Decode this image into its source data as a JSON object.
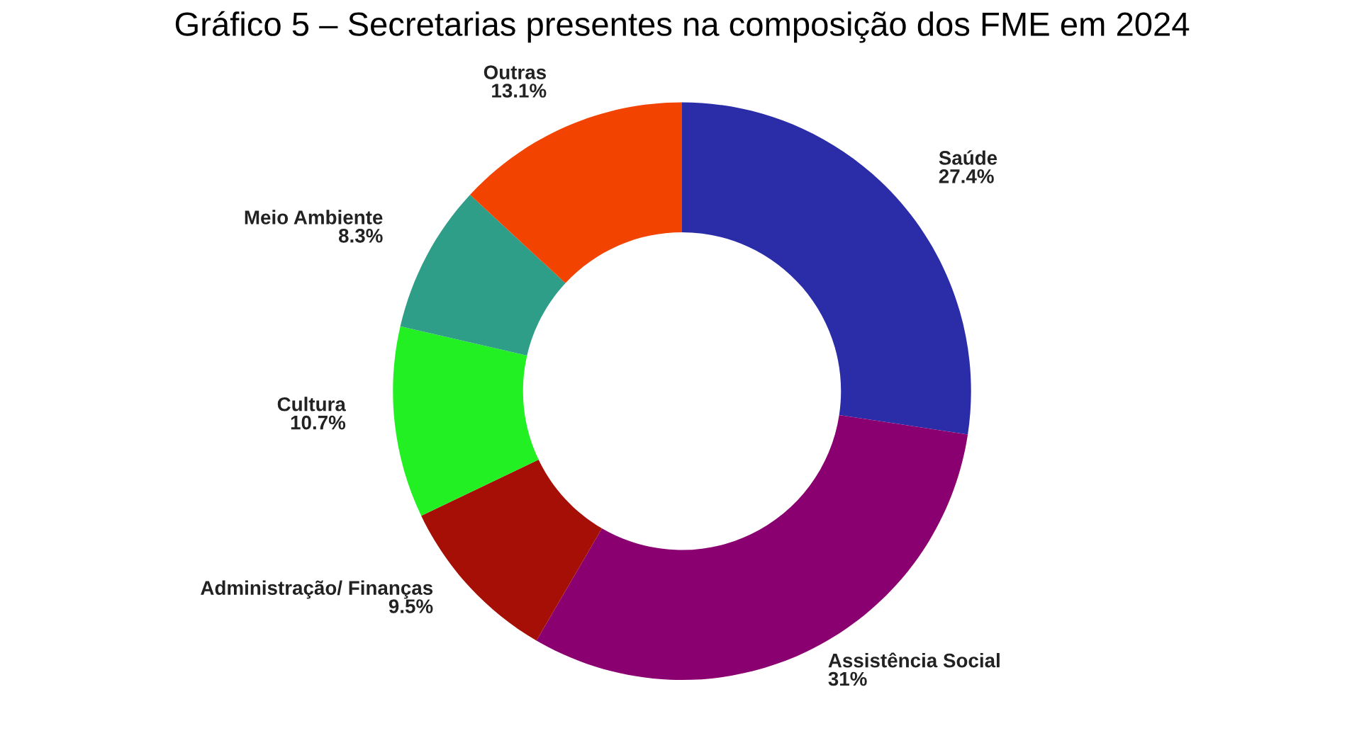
{
  "chart_data": {
    "type": "donut",
    "title": "Gráfico 5 – Secretarias presentes na composição dos FME em 2024",
    "categories": [
      "Saúde",
      "Assistência Social",
      "Administração/ Finanças",
      "Cultura",
      "Meio Ambiente",
      "Outras"
    ],
    "values": [
      27.4,
      31,
      9.5,
      10.7,
      8.3,
      13.1
    ],
    "value_labels": [
      "27.4%",
      "31%",
      "9.5%",
      "10.7%",
      "8.3%",
      "13.1%"
    ],
    "colors": [
      "#2a2ca8",
      "#8b0070",
      "#a50f05",
      "#22f022",
      "#2e9e88",
      "#f24400"
    ],
    "legend": false
  }
}
